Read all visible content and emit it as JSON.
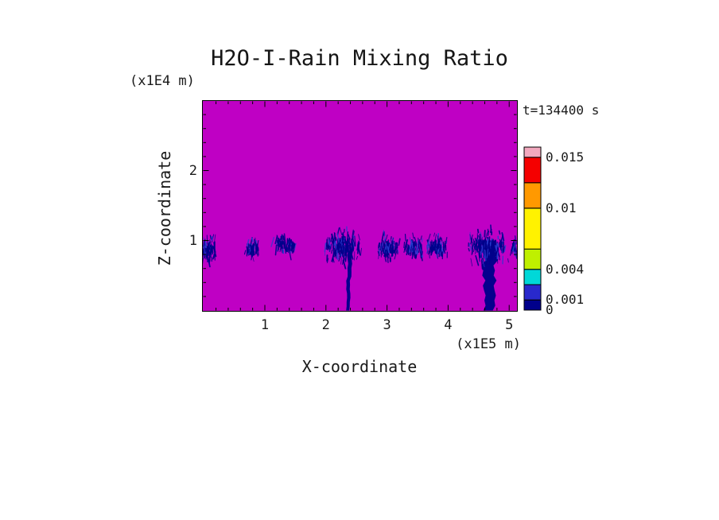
{
  "chart_data": {
    "type": "heatmap",
    "title": "H2O-I-Rain Mixing Ratio",
    "annotation_time": "t=134400 s",
    "xlabel": "X-coordinate",
    "zlabel": "Z-coordinate",
    "x_unit": "(x1E5 m)",
    "z_unit": "(x1E4 m)",
    "x_range": [
      0,
      5.13
    ],
    "z_range": [
      0,
      3
    ],
    "x_tick_values": [
      1,
      2,
      3,
      4,
      5
    ],
    "z_tick_values": [
      1,
      2
    ],
    "x_minor_step": 0.2,
    "z_minor_step": 0.2,
    "background_color": "#BF00C4",
    "rain_color": "#00008B",
    "rain_color_light": "#2A3BD0",
    "colorbar": {
      "min": 0,
      "max": 0.016,
      "tick_labels": [
        {
          "value": 0.015,
          "text": "0.015"
        },
        {
          "value": 0.01,
          "text": "0.01"
        },
        {
          "value": 0.004,
          "text": "0.004"
        },
        {
          "value": 0.001,
          "text": "0.001"
        },
        {
          "value": 0,
          "text": "0"
        }
      ],
      "segments": [
        {
          "from": 0,
          "to": 0.001,
          "color": "#00008B"
        },
        {
          "from": 0.001,
          "to": 0.0025,
          "color": "#2929CC"
        },
        {
          "from": 0.0025,
          "to": 0.004,
          "color": "#00D8D8"
        },
        {
          "from": 0.004,
          "to": 0.006,
          "color": "#BFF000"
        },
        {
          "from": 0.006,
          "to": 0.01,
          "color": "#FFF200"
        },
        {
          "from": 0.01,
          "to": 0.0125,
          "color": "#FF9900"
        },
        {
          "from": 0.0125,
          "to": 0.015,
          "color": "#F50000"
        },
        {
          "from": 0.015,
          "to": 0.016,
          "color": "#F2A8BE"
        }
      ]
    },
    "features": [
      {
        "type": "cluster",
        "x": 0.08,
        "z": 0.91,
        "w": 0.25,
        "h": 0.44,
        "density": 1.4
      },
      {
        "type": "cluster",
        "x": 0.79,
        "z": 0.92,
        "w": 0.23,
        "h": 0.29,
        "density": 1.2
      },
      {
        "type": "cluster",
        "x": 1.33,
        "z": 0.98,
        "w": 0.37,
        "h": 0.27,
        "density": 0.9
      },
      {
        "type": "cluster",
        "x": 2.27,
        "z": 0.95,
        "w": 0.6,
        "h": 0.54,
        "density": 1.6
      },
      {
        "type": "streak",
        "x": 2.39,
        "ztop": 0.85,
        "w": 0.07,
        "drift": -0.03
      },
      {
        "type": "cluster",
        "x": 3.02,
        "z": 0.95,
        "w": 0.36,
        "h": 0.43,
        "density": 1.3
      },
      {
        "type": "cluster",
        "x": 3.43,
        "z": 0.95,
        "w": 0.3,
        "h": 0.35,
        "density": 1.2
      },
      {
        "type": "cluster",
        "x": 3.82,
        "z": 0.95,
        "w": 0.35,
        "h": 0.35,
        "density": 1.2
      },
      {
        "type": "cluster",
        "x": 4.66,
        "z": 0.95,
        "w": 0.62,
        "h": 0.57,
        "density": 1.8
      },
      {
        "type": "streak",
        "x": 4.67,
        "ztop": 1.0,
        "w": 0.22,
        "drift": 0.01
      },
      {
        "type": "cluster",
        "x": 5.1,
        "z": 0.95,
        "w": 0.12,
        "h": 0.3,
        "density": 1.0
      }
    ]
  }
}
